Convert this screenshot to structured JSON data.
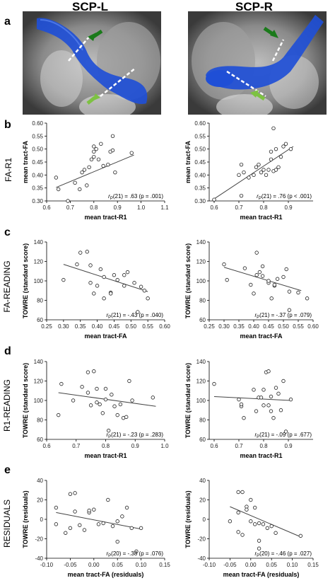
{
  "columns": [
    "SCP-L",
    "SCP-R"
  ],
  "panels": [
    {
      "letter": "a",
      "row_label": ""
    },
    {
      "letter": "b",
      "row_label": "FA-R1"
    },
    {
      "letter": "c",
      "row_label": "FA-READING"
    },
    {
      "letter": "d",
      "row_label": "R1-READING"
    },
    {
      "letter": "e",
      "row_label": "RESIDUALS"
    }
  ],
  "colors": {
    "tract": "#1f4fd6",
    "arrow_dark": "#1a7a1a",
    "arrow_light": "#7dc242"
  },
  "chart_data": [
    {
      "id": "b-left",
      "type": "scatter",
      "xlabel": "mean tract-R1",
      "ylabel": "mean tract-FA",
      "xlim": [
        0.6,
        1.1
      ],
      "ylim": [
        0.3,
        0.6
      ],
      "xticks": [
        "0.6",
        "0.7",
        "0.8",
        "0.9",
        "1.0",
        "1.1"
      ],
      "yticks": [
        "0.30",
        "0.35",
        "0.40",
        "0.45",
        "0.50",
        "0.55",
        "0.60"
      ],
      "stat_prefix": "r",
      "stat_sub": "P",
      "stat_text": "(21) = .63 (p = .001)",
      "fit": [
        [
          0.64,
          0.352
        ],
        [
          0.97,
          0.477
        ]
      ],
      "points": [
        [
          0.64,
          0.39
        ],
        [
          0.65,
          0.345
        ],
        [
          0.69,
          0.3
        ],
        [
          0.72,
          0.37
        ],
        [
          0.74,
          0.345
        ],
        [
          0.75,
          0.41
        ],
        [
          0.76,
          0.42
        ],
        [
          0.77,
          0.36
        ],
        [
          0.78,
          0.43
        ],
        [
          0.79,
          0.46
        ],
        [
          0.8,
          0.47
        ],
        [
          0.8,
          0.49
        ],
        [
          0.8,
          0.51
        ],
        [
          0.81,
          0.5
        ],
        [
          0.82,
          0.46
        ],
        [
          0.83,
          0.52
        ],
        [
          0.84,
          0.435
        ],
        [
          0.86,
          0.44
        ],
        [
          0.87,
          0.49
        ],
        [
          0.88,
          0.495
        ],
        [
          0.88,
          0.55
        ],
        [
          0.89,
          0.41
        ],
        [
          0.96,
          0.485
        ]
      ]
    },
    {
      "id": "b-right",
      "type": "scatter",
      "xlabel": "mean tract-R1",
      "ylabel": "mean tract-FA",
      "xlim": [
        0.58,
        1.0
      ],
      "ylim": [
        0.3,
        0.6
      ],
      "xticks": [
        "0.6",
        "0.7",
        "0.8",
        "0.9"
      ],
      "yticks": [
        "0.30",
        "0.35",
        "0.40",
        "0.45",
        "0.50",
        "0.55",
        "0.60"
      ],
      "stat_prefix": "r",
      "stat_sub": "P",
      "stat_text": "(21) = .76 (p < .001)",
      "fit": [
        [
          0.6,
          0.308
        ],
        [
          0.92,
          0.51
        ]
      ],
      "points": [
        [
          0.6,
          0.305
        ],
        [
          0.7,
          0.4
        ],
        [
          0.71,
          0.44
        ],
        [
          0.71,
          0.32
        ],
        [
          0.72,
          0.41
        ],
        [
          0.74,
          0.39
        ],
        [
          0.76,
          0.4
        ],
        [
          0.77,
          0.43
        ],
        [
          0.78,
          0.44
        ],
        [
          0.79,
          0.41
        ],
        [
          0.8,
          0.42
        ],
        [
          0.81,
          0.4
        ],
        [
          0.82,
          0.42
        ],
        [
          0.83,
          0.46
        ],
        [
          0.83,
          0.49
        ],
        [
          0.84,
          0.415
        ],
        [
          0.84,
          0.58
        ],
        [
          0.85,
          0.42
        ],
        [
          0.85,
          0.5
        ],
        [
          0.86,
          0.43
        ],
        [
          0.87,
          0.47
        ],
        [
          0.88,
          0.51
        ],
        [
          0.89,
          0.52
        ],
        [
          0.91,
          0.5
        ]
      ]
    },
    {
      "id": "c-left",
      "type": "scatter",
      "xlabel": "mean tract-FA",
      "ylabel": "TOWRE (standard score)",
      "xlim": [
        0.25,
        0.6
      ],
      "ylim": [
        60,
        140
      ],
      "xticks": [
        "0.25",
        "0.30",
        "0.35",
        "0.40",
        "0.45",
        "0.50",
        "0.55",
        "0.60"
      ],
      "yticks": [
        "60",
        "80",
        "100",
        "120",
        "140"
      ],
      "stat_prefix": "r",
      "stat_sub": "P",
      "stat_text": "(21) = -.43 (p = .040)",
      "fit": [
        [
          0.3,
          117
        ],
        [
          0.55,
          89
        ]
      ],
      "points": [
        [
          0.3,
          101
        ],
        [
          0.34,
          117
        ],
        [
          0.35,
          129
        ],
        [
          0.37,
          130
        ],
        [
          0.38,
          98
        ],
        [
          0.38,
          116
        ],
        [
          0.39,
          87
        ],
        [
          0.4,
          95
        ],
        [
          0.41,
          112
        ],
        [
          0.42,
          82
        ],
        [
          0.42,
          104
        ],
        [
          0.44,
          88
        ],
        [
          0.44,
          87
        ],
        [
          0.45,
          106
        ],
        [
          0.46,
          101
        ],
        [
          0.48,
          106
        ],
        [
          0.48,
          95
        ],
        [
          0.49,
          109
        ],
        [
          0.51,
          98
        ],
        [
          0.52,
          68
        ],
        [
          0.53,
          94
        ],
        [
          0.54,
          90
        ],
        [
          0.55,
          82
        ]
      ]
    },
    {
      "id": "c-right",
      "type": "scatter",
      "xlabel": "mean tract-FA",
      "ylabel": "TOWRE (standard score)",
      "xlim": [
        0.25,
        0.6
      ],
      "ylim": [
        60,
        140
      ],
      "xticks": [
        "0.25",
        "0.30",
        "0.35",
        "0.40",
        "0.45",
        "0.50",
        "0.55",
        "0.60"
      ],
      "yticks": [
        "60",
        "80",
        "100",
        "120",
        "140"
      ],
      "stat_prefix": "r",
      "stat_sub": "P",
      "stat_text": "(21) = -.37 (p = .079)",
      "fit": [
        [
          0.3,
          114
        ],
        [
          0.56,
          90
        ]
      ],
      "points": [
        [
          0.3,
          117
        ],
        [
          0.31,
          101
        ],
        [
          0.37,
          113
        ],
        [
          0.39,
          96
        ],
        [
          0.4,
          87
        ],
        [
          0.41,
          129
        ],
        [
          0.41,
          106
        ],
        [
          0.42,
          109
        ],
        [
          0.43,
          105
        ],
        [
          0.43,
          115
        ],
        [
          0.45,
          98
        ],
        [
          0.45,
          100
        ],
        [
          0.46,
          82
        ],
        [
          0.47,
          95
        ],
        [
          0.47,
          96
        ],
        [
          0.48,
          102
        ],
        [
          0.5,
          104
        ],
        [
          0.51,
          112
        ],
        [
          0.52,
          70
        ],
        [
          0.52,
          89
        ],
        [
          0.55,
          88
        ],
        [
          0.58,
          82
        ]
      ]
    },
    {
      "id": "d-left",
      "type": "scatter",
      "xlabel": "mean tract-R1",
      "ylabel": "TOWRE (standard score)",
      "xlim": [
        0.6,
        1.0
      ],
      "ylim": [
        60,
        140
      ],
      "xticks": [
        "0.6",
        "0.7",
        "0.8",
        "0.9",
        "1.0"
      ],
      "yticks": [
        "60",
        "80",
        "100",
        "120",
        "140"
      ],
      "stat_prefix": "r",
      "stat_sub": "P",
      "stat_text": "(21) = -.23 (p = .283)",
      "fit": [
        [
          0.64,
          108
        ],
        [
          0.97,
          94
        ]
      ],
      "points": [
        [
          0.64,
          85
        ],
        [
          0.65,
          117
        ],
        [
          0.69,
          100
        ],
        [
          0.72,
          114
        ],
        [
          0.74,
          129
        ],
        [
          0.74,
          108
        ],
        [
          0.75,
          95
        ],
        [
          0.76,
          130
        ],
        [
          0.77,
          112
        ],
        [
          0.77,
          98
        ],
        [
          0.78,
          96
        ],
        [
          0.79,
          87
        ],
        [
          0.8,
          112
        ],
        [
          0.8,
          101
        ],
        [
          0.81,
          69
        ],
        [
          0.82,
          106
        ],
        [
          0.83,
          94
        ],
        [
          0.84,
          85
        ],
        [
          0.85,
          96
        ],
        [
          0.86,
          82
        ],
        [
          0.87,
          83
        ],
        [
          0.88,
          120
        ],
        [
          0.89,
          100
        ],
        [
          0.96,
          103
        ]
      ]
    },
    {
      "id": "d-right",
      "type": "scatter",
      "xlabel": "mean tract-R1",
      "ylabel": "TOWRE (standard score)",
      "xlim": [
        0.58,
        1.0
      ],
      "ylim": [
        60,
        140
      ],
      "xticks": [
        "0.6",
        "0.7",
        "0.8",
        "0.9"
      ],
      "yticks": [
        "60",
        "80",
        "100",
        "120",
        "140"
      ],
      "stat_prefix": "r",
      "stat_sub": "P",
      "stat_text": "(21) = -.09 (p = .677)",
      "fit": [
        [
          0.6,
          104
        ],
        [
          0.91,
          100
        ]
      ],
      "points": [
        [
          0.6,
          117
        ],
        [
          0.7,
          101
        ],
        [
          0.71,
          94
        ],
        [
          0.71,
          96
        ],
        [
          0.72,
          82
        ],
        [
          0.76,
          111
        ],
        [
          0.77,
          89
        ],
        [
          0.78,
          103
        ],
        [
          0.79,
          103
        ],
        [
          0.8,
          95
        ],
        [
          0.8,
          111
        ],
        [
          0.81,
          129
        ],
        [
          0.82,
          95
        ],
        [
          0.82,
          130
        ],
        [
          0.83,
          104
        ],
        [
          0.83,
          89
        ],
        [
          0.84,
          82
        ],
        [
          0.85,
          113
        ],
        [
          0.86,
          107
        ],
        [
          0.87,
          90
        ],
        [
          0.88,
          120
        ],
        [
          0.89,
          68
        ],
        [
          0.91,
          101
        ]
      ]
    },
    {
      "id": "e-left",
      "type": "scatter",
      "xlabel": "mean tract-FA (residuals)",
      "ylabel": "TOWRE (residuals)",
      "xlim": [
        -0.1,
        0.15
      ],
      "ylim": [
        -40,
        40
      ],
      "xticks": [
        "-0.10",
        "-0.05",
        "0.00",
        "0.05",
        "0.10",
        "0.15"
      ],
      "yticks": [
        "-40",
        "-20",
        "0",
        "20",
        "40"
      ],
      "stat_prefix": "r",
      "stat_sub": "P",
      "stat_text": "(20) = -.38 (p = .076)",
      "fit": [
        [
          -0.08,
          7
        ],
        [
          0.1,
          -10
        ]
      ],
      "points": [
        [
          -0.08,
          -5
        ],
        [
          -0.08,
          12
        ],
        [
          -0.06,
          -14
        ],
        [
          -0.05,
          26
        ],
        [
          -0.05,
          -9
        ],
        [
          -0.04,
          27
        ],
        [
          -0.04,
          8
        ],
        [
          -0.03,
          -6
        ],
        [
          -0.02,
          -11
        ],
        [
          -0.01,
          7
        ],
        [
          -0.01,
          9
        ],
        [
          0.0,
          10
        ],
        [
          0.01,
          -5
        ],
        [
          0.02,
          -4
        ],
        [
          0.03,
          20
        ],
        [
          0.04,
          -7
        ],
        [
          0.05,
          -23
        ],
        [
          0.05,
          -2
        ],
        [
          0.06,
          3
        ],
        [
          0.07,
          12
        ],
        [
          0.08,
          -9
        ],
        [
          0.09,
          -33
        ],
        [
          0.1,
          -9
        ]
      ]
    },
    {
      "id": "e-right",
      "type": "scatter",
      "xlabel": "mean tract-FA (residuals)",
      "ylabel": "TOWRE (residuals)",
      "xlim": [
        -0.1,
        0.15
      ],
      "ylim": [
        -40,
        40
      ],
      "xticks": [
        "-0.10",
        "-0.05",
        "0.00",
        "0.05",
        "0.10",
        "0.15"
      ],
      "yticks": [
        "-40",
        "-20",
        "0",
        "20",
        "40"
      ],
      "stat_prefix": "r",
      "stat_sub": "P",
      "stat_text": "(20) = -.46 (p = .027)",
      "fit": [
        [
          -0.05,
          13
        ],
        [
          0.12,
          -18
        ]
      ],
      "points": [
        [
          -0.05,
          -2
        ],
        [
          -0.03,
          7
        ],
        [
          -0.03,
          28
        ],
        [
          -0.03,
          -13
        ],
        [
          -0.02,
          28
        ],
        [
          -0.02,
          -16
        ],
        [
          -0.01,
          13
        ],
        [
          -0.01,
          10
        ],
        [
          0.0,
          -2
        ],
        [
          0.0,
          20
        ],
        [
          0.01,
          12
        ],
        [
          0.01,
          -5
        ],
        [
          0.02,
          -4
        ],
        [
          0.02,
          -30
        ],
        [
          0.02,
          -22
        ],
        [
          0.03,
          -5
        ],
        [
          0.04,
          -9
        ],
        [
          0.05,
          -7
        ],
        [
          0.06,
          -14
        ],
        [
          0.12,
          -17
        ]
      ]
    }
  ]
}
